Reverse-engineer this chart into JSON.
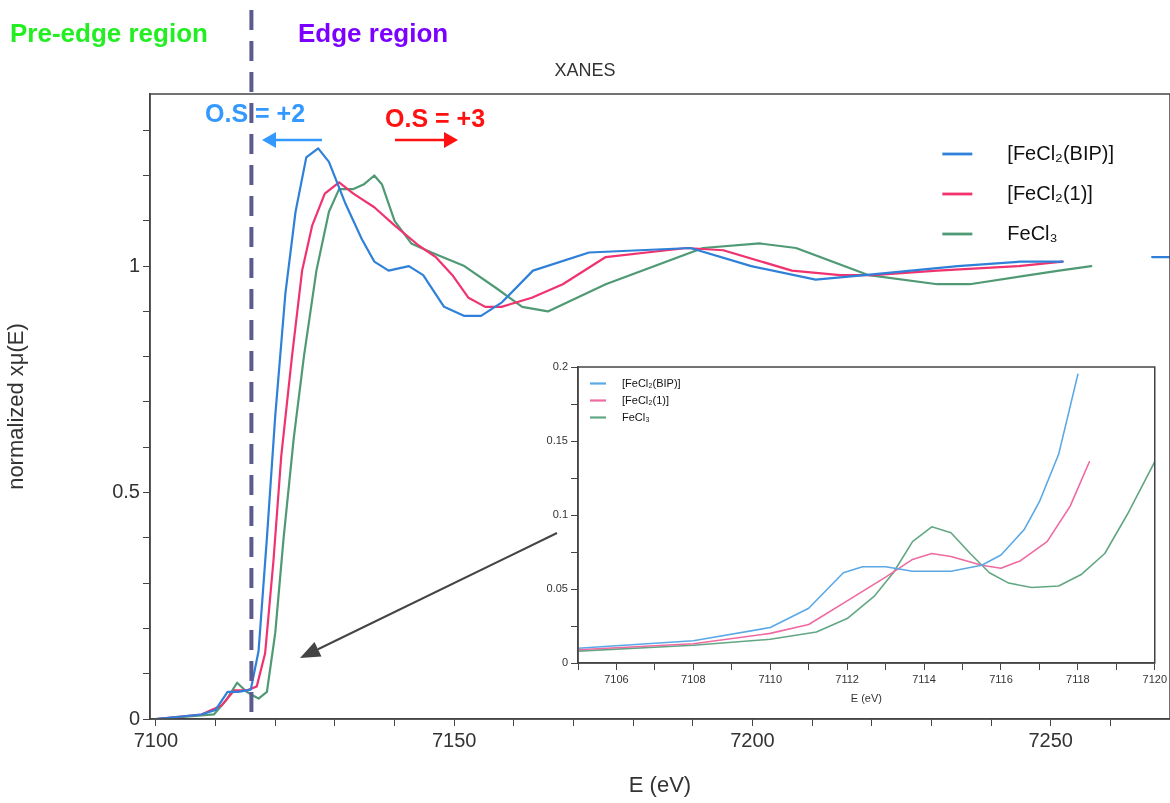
{
  "chart_data": [
    {
      "type": "line",
      "title": "XANES",
      "xlabel": "E (eV)",
      "ylabel": "normalized xμ(E)",
      "xlim": [
        7099,
        7270
      ],
      "xticks": [
        7100,
        {
          "value": 7110,
          "label": null
        },
        {
          "value": 7120,
          "label": null
        },
        {
          "value": 7130,
          "label": null
        },
        {
          "value": 7140,
          "label": null
        },
        7150,
        {
          "value": 7160,
          "label": null
        },
        {
          "value": 7170,
          "label": null
        },
        {
          "value": 7180,
          "label": null
        },
        {
          "value": 7190,
          "label": null
        },
        7200,
        {
          "value": 7210,
          "label": null
        },
        {
          "value": 7220,
          "label": null
        },
        {
          "value": 7230,
          "label": null
        },
        {
          "value": 7240,
          "label": null
        },
        7250,
        {
          "value": 7260,
          "label": null
        }
      ],
      "ylim": [
        0,
        1.38
      ],
      "yticks": [
        0,
        {
          "value": 0.1,
          "label": null
        },
        {
          "value": 0.2,
          "label": null
        },
        {
          "value": 0.3,
          "label": null
        },
        {
          "value": 0.4,
          "label": null
        },
        0.5,
        {
          "value": 0.6,
          "label": null
        },
        {
          "value": 0.7,
          "label": null
        },
        {
          "value": 0.8,
          "label": null
        },
        {
          "value": 0.9,
          "label": null
        },
        1,
        {
          "value": 1.1,
          "label": null
        },
        {
          "value": 1.2,
          "label": null
        },
        {
          "value": 1.3,
          "label": null
        }
      ],
      "legend": "top right",
      "series": [
        {
          "name": "[FeCl₂(BIP)]",
          "color": "#2f80d8",
          "x": [
            7100,
            7107.6,
            7110,
            7112,
            7113.8,
            7115.9,
            7117.2,
            7118.6,
            7120,
            7121.7,
            7123.4,
            7125.2,
            7127.2,
            7129,
            7131.7,
            7134.5,
            7136.6,
            7139,
            7142.4,
            7144.8,
            7148.3,
            7151.7,
            7154.5,
            7158,
            7163.2,
            7172.6,
            7189.6,
            7199.8,
            7210.6,
            7218.8,
            7234.4,
            7245,
            7252,
            7260,
            7267,
            7270
          ],
          "values": [
            0,
            0.01,
            0.02,
            0.06,
            0.06,
            0.065,
            0.15,
            0.4,
            0.67,
            0.94,
            1.12,
            1.24,
            1.26,
            1.23,
            1.14,
            1.06,
            1.01,
            0.99,
            1.0,
            0.98,
            0.91,
            0.89,
            0.89,
            0.92,
            0.99,
            1.03,
            1.04,
            1.0,
            0.97,
            0.98,
            1.0,
            1.01,
            1.01,
            null,
            1.02,
            1.02
          ]
        },
        {
          "name": "[FeCl₂(1)]",
          "color": "#f0336e",
          "x": [
            7100,
            7107.6,
            7111,
            7113.1,
            7115.2,
            7116.9,
            7118.3,
            7119.7,
            7121,
            7122.8,
            7124.5,
            7126.2,
            7128.3,
            7130.7,
            7133.1,
            7136.6,
            7140,
            7144.1,
            7146.9,
            7149.7,
            7152.4,
            7155.2,
            7157.9,
            7163,
            7168.2,
            7175.4,
            7189,
            7195.1,
            7206.6,
            7214.7,
            7220.2,
            7231,
            7244.6,
            7252
          ],
          "values": [
            0,
            0.01,
            0.03,
            0.063,
            0.063,
            0.072,
            0.145,
            0.35,
            0.58,
            0.8,
            0.99,
            1.09,
            1.16,
            1.185,
            1.16,
            1.13,
            1.09,
            1.045,
            1.02,
            0.98,
            0.93,
            0.91,
            0.91,
            0.93,
            0.96,
            1.02,
            1.04,
            1.035,
            0.99,
            0.98,
            0.98,
            0.99,
            1.0,
            1.01
          ]
        },
        {
          "name": "FeCl₃",
          "color": "#4f9a75",
          "x": [
            7100,
            7109.7,
            7111.7,
            7113.6,
            7115.2,
            7117.2,
            7118.6,
            7120,
            7121.4,
            7123.1,
            7124.8,
            7126.9,
            7129,
            7130.7,
            7133.1,
            7134.8,
            7136.6,
            7137.9,
            7140,
            7142.8,
            7146.2,
            7151.7,
            7157.2,
            7161.4,
            7165.7,
            7175.4,
            7191.7,
            7201.2,
            7207.3,
            7219.5,
            7231,
            7236.4,
            7251.4,
            7256.8
          ],
          "values": [
            0,
            0.01,
            0.04,
            0.08,
            0.06,
            0.045,
            0.06,
            0.19,
            0.4,
            0.62,
            0.8,
            0.99,
            1.12,
            1.17,
            1.17,
            1.18,
            1.2,
            1.18,
            1.1,
            1.05,
            1.03,
            1.0,
            0.95,
            0.91,
            0.9,
            0.96,
            1.04,
            1.05,
            1.04,
            0.98,
            0.96,
            0.96,
            0.99,
            1.0
          ]
        }
      ],
      "ref_lines": [
        {
          "axis": "x",
          "value": 7116,
          "label": null,
          "color": "#5b5b8f",
          "line_style": "dashed"
        }
      ],
      "annotations": [
        "Pre-edge region",
        "Edge region",
        "O.S = +2",
        "O.S = +3"
      ]
    },
    {
      "type": "line",
      "xlabel": "E (eV)",
      "xlim": [
        7105,
        7120
      ],
      "xticks": [
        {
          "value": 7105,
          "label": null
        },
        7106,
        {
          "value": 7107,
          "label": null
        },
        7108,
        {
          "value": 7109,
          "label": null
        },
        7110,
        {
          "value": 7111,
          "label": null
        },
        7112,
        {
          "value": 7113,
          "label": null
        },
        7114,
        {
          "value": 7115,
          "label": null
        },
        7116,
        {
          "value": 7117,
          "label": null
        },
        7118,
        {
          "value": 7119,
          "label": null
        },
        7120
      ],
      "ylim": [
        0,
        0.2
      ],
      "yticks": [
        0,
        {
          "value": 0.025,
          "label": null
        },
        0.05,
        {
          "value": 0.075,
          "label": null
        },
        0.1,
        {
          "value": 0.125,
          "label": null
        },
        0.15,
        {
          "value": 0.175,
          "label": null
        },
        0.2
      ],
      "legend": "top left",
      "series": [
        {
          "name": "[FeCl₂(BIP)]",
          "color": "#5aa8e6",
          "x": [
            7105,
            7108,
            7110,
            7111,
            7111.9,
            7112.4,
            7113,
            7113.7,
            7114.7,
            7115.5,
            7116,
            7116.6,
            7117,
            7117.5,
            7118
          ],
          "values": [
            0.01,
            0.015,
            0.024,
            0.037,
            0.061,
            0.065,
            0.065,
            0.062,
            0.062,
            0.066,
            0.073,
            0.09,
            0.109,
            0.141,
            0.195
          ]
        },
        {
          "name": "[FeCl₂(1)]",
          "color": "#ef6aa0",
          "x": [
            7105,
            7108,
            7110,
            7111,
            7112,
            7113,
            7113.7,
            7114.2,
            7114.7,
            7115.5,
            7116,
            7116.5,
            7117.2,
            7117.8,
            7118.3
          ],
          "values": [
            0.009,
            0.013,
            0.02,
            0.026,
            0.042,
            0.058,
            0.07,
            0.074,
            0.072,
            0.066,
            0.064,
            0.069,
            0.082,
            0.106,
            0.136
          ]
        },
        {
          "name": "FeCl₃",
          "color": "#62a784",
          "x": [
            7105,
            7108,
            7110,
            7111.2,
            7112,
            7112.7,
            7113.2,
            7113.7,
            7114.2,
            7114.7,
            7115.2,
            7115.7,
            7116.2,
            7116.8,
            7117.5,
            7118.1,
            7118.7,
            7119.3,
            7120
          ],
          "values": [
            0.008,
            0.012,
            0.016,
            0.021,
            0.03,
            0.045,
            0.061,
            0.082,
            0.092,
            0.088,
            0.074,
            0.061,
            0.054,
            0.051,
            0.052,
            0.06,
            0.074,
            0.101,
            0.136
          ]
        }
      ]
    }
  ]
}
